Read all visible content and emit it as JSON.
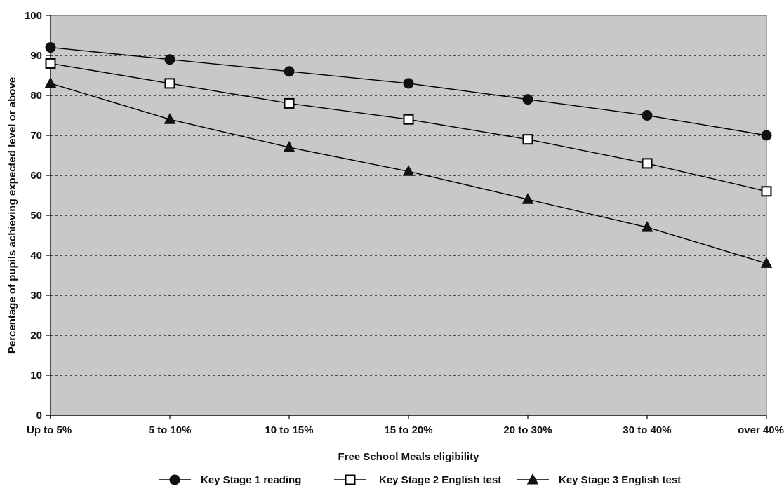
{
  "chart_data": {
    "type": "line",
    "title": "",
    "xlabel": "Free School Meals eligibility",
    "ylabel": "Percentage of pupils achieving expected level or above",
    "categories": [
      "Up to 5%",
      "5 to 10%",
      "10 to 15%",
      "15 to 20%",
      "20 to 30%",
      "30 to 40%",
      "over 40%"
    ],
    "ylim": [
      0,
      100
    ],
    "yticks": [
      0,
      10,
      20,
      30,
      40,
      50,
      60,
      70,
      80,
      90,
      100
    ],
    "grid": true,
    "legend_position": "bottom",
    "plot_background": "#c8c8c8",
    "series": [
      {
        "name": "Key Stage 1 reading",
        "marker": "circle",
        "values": [
          92,
          89,
          86,
          83,
          79,
          75,
          70
        ]
      },
      {
        "name": "Key Stage 2 English test",
        "marker": "square",
        "values": [
          88,
          83,
          78,
          74,
          69,
          63,
          56
        ]
      },
      {
        "name": "Key Stage 3 English test",
        "marker": "triangle",
        "values": [
          83,
          74,
          67,
          61,
          54,
          47,
          38
        ]
      }
    ]
  }
}
